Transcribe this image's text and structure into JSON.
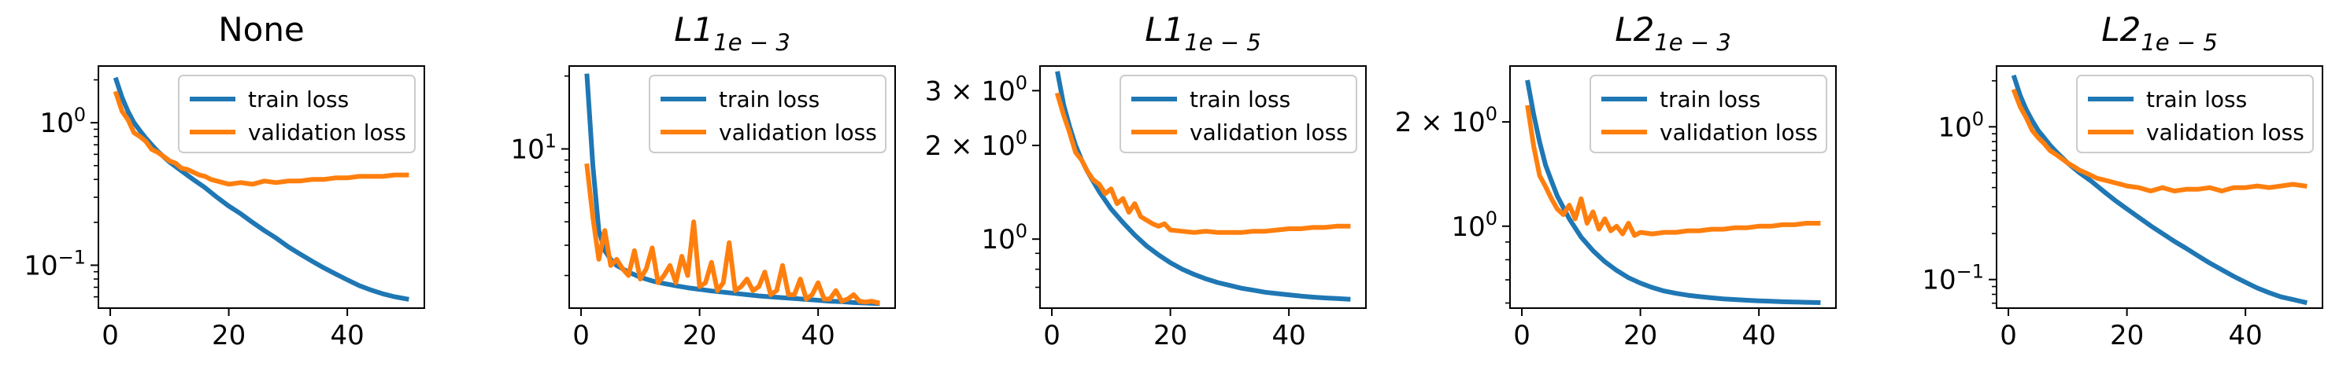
{
  "chart_data": [
    {
      "type": "line",
      "title": "None",
      "title_sub": "",
      "yscale": "log",
      "xlim": [
        -2,
        53
      ],
      "ylim": [
        0.05,
        2.5
      ],
      "xticks": [
        0,
        20,
        40
      ],
      "yticks": [
        {
          "value": 1,
          "base": "10",
          "exp": "0"
        },
        {
          "value": 0.1,
          "base": "10",
          "exp": "−1"
        }
      ],
      "minor_yticks": [
        0.06,
        0.07,
        0.08,
        0.09,
        0.2,
        0.3,
        0.4,
        0.5,
        0.6,
        0.7,
        0.8,
        0.9,
        2
      ],
      "legend": "top-right",
      "series": [
        {
          "name": "train loss",
          "color": "#1f77b4",
          "x": [
            1,
            2,
            3,
            4,
            5,
            6,
            7,
            8,
            10,
            12,
            14,
            16,
            18,
            20,
            22,
            24,
            26,
            28,
            30,
            32,
            34,
            36,
            38,
            40,
            42,
            44,
            46,
            48,
            50
          ],
          "y": [
            2.0,
            1.5,
            1.2,
            1.0,
            0.88,
            0.78,
            0.7,
            0.63,
            0.53,
            0.46,
            0.4,
            0.35,
            0.3,
            0.26,
            0.23,
            0.2,
            0.175,
            0.155,
            0.135,
            0.12,
            0.107,
            0.096,
            0.087,
            0.079,
            0.072,
            0.067,
            0.063,
            0.06,
            0.058
          ]
        },
        {
          "name": "validation loss",
          "color": "#ff7f0e",
          "x": [
            1,
            2,
            3,
            4,
            5,
            6,
            7,
            8,
            9,
            10,
            11,
            12,
            13,
            14,
            15,
            16,
            17,
            18,
            19,
            20,
            22,
            24,
            26,
            28,
            30,
            32,
            34,
            36,
            38,
            40,
            42,
            44,
            46,
            48,
            50
          ],
          "y": [
            1.6,
            1.2,
            1.05,
            0.85,
            0.8,
            0.74,
            0.65,
            0.62,
            0.58,
            0.54,
            0.52,
            0.48,
            0.47,
            0.45,
            0.43,
            0.42,
            0.4,
            0.39,
            0.38,
            0.37,
            0.38,
            0.37,
            0.39,
            0.38,
            0.39,
            0.39,
            0.4,
            0.4,
            0.41,
            0.41,
            0.42,
            0.42,
            0.42,
            0.43,
            0.43
          ]
        }
      ]
    },
    {
      "type": "line",
      "title": "L1",
      "title_sub": "1e − 3",
      "yscale": "log",
      "xlim": [
        -2,
        53
      ],
      "ylim": [
        2.2,
        22
      ],
      "xticks": [
        0,
        20,
        40
      ],
      "yticks": [
        {
          "value": 10,
          "base": "10",
          "exp": "1"
        }
      ],
      "minor_yticks": [
        3,
        4,
        5,
        6,
        7,
        8,
        9,
        20
      ],
      "legend": "top-right",
      "series": [
        {
          "name": "train loss",
          "color": "#1f77b4",
          "x": [
            1,
            2,
            3,
            4,
            5,
            6,
            8,
            10,
            12,
            14,
            16,
            18,
            20,
            22,
            24,
            26,
            28,
            30,
            32,
            34,
            36,
            38,
            40,
            42,
            44,
            46,
            48,
            50
          ],
          "y": [
            20.0,
            8.5,
            4.6,
            3.8,
            3.5,
            3.3,
            3.1,
            2.95,
            2.85,
            2.78,
            2.72,
            2.67,
            2.63,
            2.59,
            2.56,
            2.53,
            2.5,
            2.47,
            2.45,
            2.43,
            2.41,
            2.39,
            2.37,
            2.35,
            2.34,
            2.32,
            2.31,
            2.3
          ]
        },
        {
          "name": "validation loss",
          "color": "#ff7f0e",
          "x": [
            1,
            2,
            3,
            4,
            5,
            6,
            7,
            8,
            9,
            10,
            11,
            12,
            13,
            14,
            15,
            16,
            17,
            18,
            19,
            20,
            21,
            22,
            23,
            24,
            25,
            26,
            27,
            28,
            29,
            30,
            31,
            32,
            33,
            34,
            35,
            36,
            37,
            38,
            39,
            40,
            41,
            42,
            43,
            44,
            45,
            46,
            47,
            48,
            49,
            50
          ],
          "y": [
            8.5,
            5.2,
            3.5,
            4.6,
            3.3,
            3.5,
            3.2,
            3.0,
            3.8,
            2.9,
            3.2,
            3.9,
            2.8,
            3.0,
            3.3,
            2.8,
            3.6,
            3.0,
            5.0,
            2.7,
            2.8,
            3.4,
            2.6,
            2.8,
            4.1,
            2.6,
            2.7,
            2.9,
            2.6,
            2.7,
            3.1,
            2.5,
            2.6,
            3.3,
            2.5,
            2.5,
            2.9,
            2.4,
            2.5,
            2.8,
            2.4,
            2.4,
            2.6,
            2.35,
            2.4,
            2.5,
            2.35,
            2.33,
            2.35,
            2.32
          ]
        }
      ]
    },
    {
      "type": "line",
      "title": "L1",
      "title_sub": "1e − 5",
      "yscale": "log",
      "xlim": [
        -2,
        53
      ],
      "ylim": [
        0.6,
        3.6
      ],
      "xticks": [
        0,
        20,
        40
      ],
      "yticks": [
        {
          "value": 3,
          "base": "3 × 10",
          "exp": "0"
        },
        {
          "value": 2,
          "base": "2 × 10",
          "exp": "0"
        },
        {
          "value": 1,
          "base": "10",
          "exp": "0"
        }
      ],
      "minor_yticks": [
        0.7,
        0.8,
        0.9
      ],
      "legend": "top-right",
      "series": [
        {
          "name": "train loss",
          "color": "#1f77b4",
          "x": [
            1,
            2,
            3,
            4,
            5,
            6,
            8,
            10,
            12,
            14,
            16,
            18,
            20,
            22,
            24,
            26,
            28,
            30,
            32,
            34,
            36,
            38,
            40,
            42,
            44,
            46,
            48,
            50
          ],
          "y": [
            3.4,
            2.7,
            2.3,
            2.0,
            1.8,
            1.65,
            1.42,
            1.25,
            1.13,
            1.03,
            0.95,
            0.89,
            0.84,
            0.8,
            0.77,
            0.745,
            0.725,
            0.71,
            0.695,
            0.685,
            0.675,
            0.668,
            0.662,
            0.656,
            0.651,
            0.647,
            0.644,
            0.641
          ]
        },
        {
          "name": "validation loss",
          "color": "#ff7f0e",
          "x": [
            1,
            2,
            3,
            4,
            5,
            6,
            7,
            8,
            9,
            10,
            11,
            12,
            13,
            14,
            15,
            16,
            17,
            18,
            19,
            20,
            22,
            24,
            26,
            28,
            30,
            32,
            34,
            36,
            38,
            40,
            42,
            44,
            46,
            48,
            50
          ],
          "y": [
            2.9,
            2.5,
            2.2,
            1.9,
            1.8,
            1.65,
            1.55,
            1.5,
            1.4,
            1.45,
            1.3,
            1.35,
            1.22,
            1.3,
            1.18,
            1.15,
            1.12,
            1.1,
            1.12,
            1.07,
            1.06,
            1.05,
            1.06,
            1.05,
            1.05,
            1.05,
            1.06,
            1.06,
            1.07,
            1.08,
            1.08,
            1.09,
            1.09,
            1.1,
            1.1
          ]
        }
      ]
    },
    {
      "type": "line",
      "title": "L2",
      "title_sub": "1e − 3",
      "yscale": "log",
      "xlim": [
        -2,
        53
      ],
      "ylim": [
        0.58,
        2.9
      ],
      "xticks": [
        0,
        20,
        40
      ],
      "yticks": [
        {
          "value": 2,
          "base": "2 × 10",
          "exp": "0"
        },
        {
          "value": 1,
          "base": "10",
          "exp": "0"
        }
      ],
      "minor_yticks": [
        0.6,
        0.7,
        0.8,
        0.9
      ],
      "legend": "top-right",
      "series": [
        {
          "name": "train loss",
          "color": "#1f77b4",
          "x": [
            1,
            2,
            3,
            4,
            5,
            6,
            8,
            10,
            12,
            14,
            16,
            18,
            20,
            22,
            24,
            26,
            28,
            30,
            32,
            34,
            36,
            38,
            40,
            42,
            44,
            46,
            48,
            50
          ],
          "y": [
            2.6,
            2.1,
            1.75,
            1.5,
            1.35,
            1.22,
            1.05,
            0.93,
            0.85,
            0.79,
            0.745,
            0.71,
            0.685,
            0.665,
            0.65,
            0.64,
            0.632,
            0.626,
            0.621,
            0.617,
            0.614,
            0.611,
            0.609,
            0.607,
            0.605,
            0.604,
            0.603,
            0.602
          ]
        },
        {
          "name": "validation loss",
          "color": "#ff7f0e",
          "x": [
            1,
            2,
            3,
            4,
            5,
            6,
            7,
            8,
            9,
            10,
            11,
            12,
            13,
            14,
            15,
            16,
            17,
            18,
            19,
            20,
            22,
            24,
            26,
            28,
            30,
            32,
            34,
            36,
            38,
            40,
            42,
            44,
            46,
            48,
            50
          ],
          "y": [
            2.2,
            1.7,
            1.4,
            1.3,
            1.2,
            1.12,
            1.08,
            1.15,
            1.05,
            1.2,
            1.02,
            1.1,
            0.98,
            1.05,
            0.97,
            1.0,
            0.95,
            1.02,
            0.94,
            0.96,
            0.95,
            0.96,
            0.96,
            0.97,
            0.97,
            0.98,
            0.98,
            0.99,
            0.99,
            1.0,
            1.0,
            1.01,
            1.01,
            1.02,
            1.02
          ]
        }
      ]
    },
    {
      "type": "line",
      "title": "L2",
      "title_sub": "1e − 5",
      "yscale": "log",
      "xlim": [
        -2,
        53
      ],
      "ylim": [
        0.065,
        2.5
      ],
      "xticks": [
        0,
        20,
        40
      ],
      "yticks": [
        {
          "value": 1,
          "base": "10",
          "exp": "0"
        },
        {
          "value": 0.1,
          "base": "10",
          "exp": "−1"
        }
      ],
      "minor_yticks": [
        0.07,
        0.08,
        0.09,
        0.2,
        0.3,
        0.4,
        0.5,
        0.6,
        0.7,
        0.8,
        0.9,
        2
      ],
      "legend": "top-right",
      "series": [
        {
          "name": "train loss",
          "color": "#1f77b4",
          "x": [
            1,
            2,
            3,
            4,
            5,
            6,
            7,
            8,
            10,
            12,
            14,
            16,
            18,
            20,
            22,
            24,
            26,
            28,
            30,
            32,
            34,
            36,
            38,
            40,
            42,
            44,
            46,
            48,
            50
          ],
          "y": [
            2.1,
            1.6,
            1.3,
            1.1,
            0.95,
            0.85,
            0.76,
            0.69,
            0.58,
            0.5,
            0.44,
            0.38,
            0.33,
            0.29,
            0.255,
            0.225,
            0.2,
            0.178,
            0.16,
            0.143,
            0.128,
            0.116,
            0.105,
            0.096,
            0.088,
            0.082,
            0.077,
            0.074,
            0.071
          ]
        },
        {
          "name": "validation loss",
          "color": "#ff7f0e",
          "x": [
            1,
            2,
            3,
            4,
            5,
            6,
            7,
            8,
            9,
            10,
            11,
            12,
            13,
            14,
            15,
            16,
            17,
            18,
            19,
            20,
            22,
            24,
            26,
            28,
            30,
            32,
            34,
            36,
            38,
            40,
            42,
            44,
            46,
            48,
            50
          ],
          "y": [
            1.7,
            1.35,
            1.15,
            0.95,
            0.85,
            0.78,
            0.7,
            0.66,
            0.62,
            0.58,
            0.55,
            0.52,
            0.5,
            0.48,
            0.46,
            0.45,
            0.44,
            0.43,
            0.42,
            0.41,
            0.4,
            0.38,
            0.4,
            0.38,
            0.39,
            0.39,
            0.4,
            0.38,
            0.4,
            0.4,
            0.41,
            0.4,
            0.41,
            0.42,
            0.41
          ]
        }
      ]
    }
  ]
}
